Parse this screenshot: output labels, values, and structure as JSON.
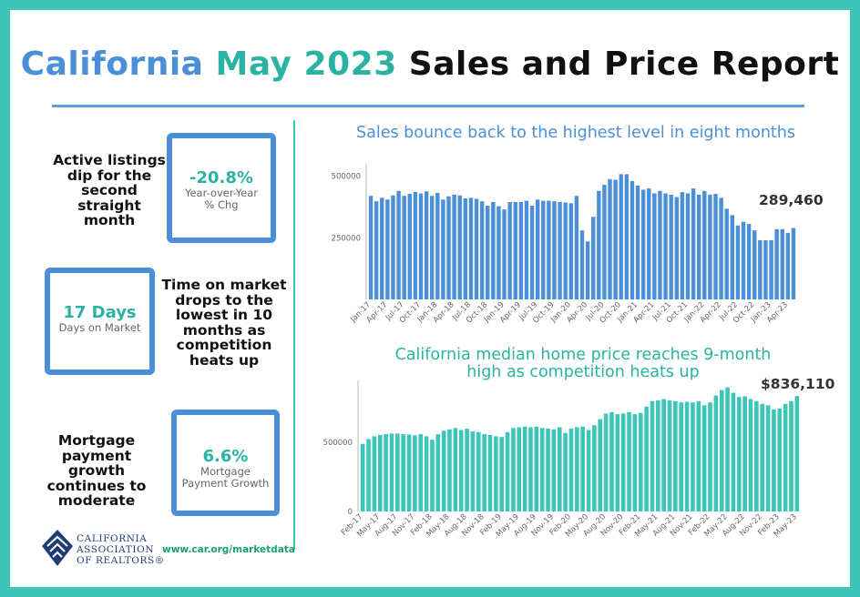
{
  "title": {
    "part1": "California",
    "part2": "May 2023",
    "part3": "Sales and Price Report"
  },
  "stats": [
    {
      "text_lines": [
        "Active listings",
        "dip for the",
        "second",
        "straight",
        "month"
      ],
      "value": "-20.8%",
      "label_lines": [
        "Year-over-Year",
        "% Chg"
      ]
    },
    {
      "text_lines": [
        "Time on market",
        "drops to the",
        "lowest in 10",
        "months as",
        "competition",
        "heats up"
      ],
      "value": "17 Days",
      "label_lines": [
        "Days on Market"
      ]
    },
    {
      "text_lines": [
        "Mortgage",
        "payment",
        "growth",
        "continues to",
        "moderate"
      ],
      "value": "6.6%",
      "label_lines": [
        "Mortgage",
        "Payment Growth"
      ]
    }
  ],
  "footer": {
    "url": "www.car.org/marketdata",
    "logo_lines": [
      "CALIFORNIA",
      "ASSOCIATION",
      "OF REALTORS®"
    ]
  },
  "colors": {
    "frame": "#3cc6b8",
    "blue": "#4a8fd8",
    "teal": "#2ab3a3"
  },
  "chart_data": [
    {
      "type": "bar",
      "title": "Sales bounce back to the highest level in eight months",
      "callout": "289,460",
      "ylim": [
        0,
        550000
      ],
      "yticks": [
        {
          "value": 250000,
          "label": "250000"
        },
        {
          "value": 500000,
          "label": "500000"
        }
      ],
      "categories": [
        "Jan-17",
        "Feb-17",
        "Mar-17",
        "Apr-17",
        "May-17",
        "Jun-17",
        "Jul-17",
        "Aug-17",
        "Sep-17",
        "Oct-17",
        "Nov-17",
        "Dec-17",
        "Jan-18",
        "Feb-18",
        "Mar-18",
        "Apr-18",
        "May-18",
        "Jun-18",
        "Jul-18",
        "Aug-18",
        "Sep-18",
        "Oct-18",
        "Nov-18",
        "Dec-18",
        "Jan-19",
        "Feb-19",
        "Mar-19",
        "Apr-19",
        "May-19",
        "Jun-19",
        "Jul-19",
        "Aug-19",
        "Sep-19",
        "Oct-19",
        "Nov-19",
        "Dec-19",
        "Jan-20",
        "Feb-20",
        "Mar-20",
        "Apr-20",
        "May-20",
        "Jun-20",
        "Jul-20",
        "Aug-20",
        "Sep-20",
        "Oct-20",
        "Nov-20",
        "Dec-20",
        "Jan-21",
        "Feb-21",
        "Mar-21",
        "Apr-21",
        "May-21",
        "Jun-21",
        "Jul-21",
        "Aug-21",
        "Sep-21",
        "Oct-21",
        "Nov-21",
        "Dec-21",
        "Jan-22",
        "Feb-22",
        "Mar-22",
        "Apr-22",
        "May-22",
        "Jun-22",
        "Jul-22",
        "Aug-22",
        "Sep-22",
        "Oct-22",
        "Nov-22",
        "Dec-22",
        "Jan-23",
        "Feb-23",
        "Mar-23",
        "Apr-23",
        "May-23"
      ],
      "tick_labels": [
        "Jan-17",
        "Apr-17",
        "Jul-17",
        "Oct-17",
        "Jan-18",
        "Apr-18",
        "Jul-18",
        "Oct-18",
        "Jan-19",
        "Apr-19",
        "Jul-19",
        "Oct-19",
        "Jan-20",
        "Apr-20",
        "Jul-20",
        "Oct-20",
        "Jan-21",
        "Apr-21",
        "Jul-21",
        "Oct-21",
        "Jan-22",
        "Apr-22",
        "Jul-22",
        "Oct-22",
        "Jan-23",
        "Apr-23"
      ],
      "values": [
        420000,
        398000,
        412000,
        405000,
        422000,
        440000,
        420000,
        428000,
        436000,
        430000,
        438000,
        420000,
        432000,
        405000,
        418000,
        425000,
        422000,
        410000,
        412000,
        408000,
        398000,
        380000,
        395000,
        378000,
        365000,
        395000,
        395000,
        395000,
        400000,
        380000,
        405000,
        400000,
        400000,
        398000,
        395000,
        393000,
        390000,
        420000,
        280000,
        235000,
        335000,
        440000,
        465000,
        488000,
        485000,
        508000,
        508000,
        480000,
        462000,
        445000,
        450000,
        430000,
        440000,
        430000,
        425000,
        415000,
        435000,
        430000,
        450000,
        425000,
        440000,
        425000,
        428000,
        412000,
        368000,
        342000,
        300000,
        315000,
        306000,
        280000,
        240000,
        240000,
        240000,
        285000,
        285000,
        270000,
        289460
      ]
    },
    {
      "type": "bar",
      "title": "California median home price reaches 9-month high as competition heats up",
      "title_lines": [
        "California median home price reaches 9-month",
        "high as competition heats up"
      ],
      "callout": "$836,110",
      "ylim": [
        0,
        950000
      ],
      "yticks": [
        {
          "value": 0,
          "label": "0"
        },
        {
          "value": 500000,
          "label": "500000"
        }
      ],
      "categories": [
        "Feb-17",
        "Mar-17",
        "Apr-17",
        "May-17",
        "Jun-17",
        "Jul-17",
        "Aug-17",
        "Sep-17",
        "Oct-17",
        "Nov-17",
        "Dec-17",
        "Jan-18",
        "Feb-18",
        "Mar-18",
        "Apr-18",
        "May-18",
        "Jun-18",
        "Jul-18",
        "Aug-18",
        "Sep-18",
        "Oct-18",
        "Nov-18",
        "Dec-18",
        "Jan-19",
        "Feb-19",
        "Mar-19",
        "Apr-19",
        "May-19",
        "Jun-19",
        "Jul-19",
        "Aug-19",
        "Sep-19",
        "Oct-19",
        "Nov-19",
        "Dec-19",
        "Jan-20",
        "Feb-20",
        "Mar-20",
        "Apr-20",
        "May-20",
        "Jun-20",
        "Jul-20",
        "Aug-20",
        "Sep-20",
        "Oct-20",
        "Nov-20",
        "Dec-20",
        "Jan-21",
        "Feb-21",
        "Mar-21",
        "Apr-21",
        "May-21",
        "Jun-21",
        "Jul-21",
        "Aug-21",
        "Sep-21",
        "Oct-21",
        "Nov-21",
        "Dec-21",
        "Jan-22",
        "Feb-22",
        "Mar-22",
        "Apr-22",
        "May-22",
        "Jun-22",
        "Jul-22",
        "Aug-22",
        "Sep-22",
        "Oct-22",
        "Nov-22",
        "Dec-22",
        "Jan-23",
        "Feb-23",
        "Mar-23",
        "Apr-23",
        "May-23"
      ],
      "tick_labels": [
        "Feb-17",
        "May-17",
        "Aug-17",
        "Nov-17",
        "Feb-18",
        "May-18",
        "Aug-18",
        "Nov-18",
        "Feb-19",
        "May-19",
        "Aug-19",
        "Nov-19",
        "Feb-20",
        "May-20",
        "Aug-20",
        "Nov-20",
        "Feb-21",
        "May-21",
        "Aug-21",
        "Nov-21",
        "Feb-22",
        "May-22",
        "Aug-22",
        "Nov-22",
        "Feb-23",
        "May-23"
      ],
      "values": [
        490000,
        525000,
        545000,
        555000,
        560000,
        565000,
        565000,
        560000,
        558000,
        552000,
        560000,
        545000,
        520000,
        560000,
        585000,
        595000,
        605000,
        590000,
        600000,
        580000,
        575000,
        560000,
        555000,
        545000,
        540000,
        575000,
        605000,
        610000,
        615000,
        610000,
        615000,
        605000,
        600000,
        595000,
        610000,
        570000,
        600000,
        610000,
        615000,
        590000,
        625000,
        670000,
        710000,
        720000,
        705000,
        710000,
        720000,
        705000,
        715000,
        760000,
        800000,
        805000,
        815000,
        805000,
        800000,
        790000,
        795000,
        790000,
        800000,
        770000,
        790000,
        840000,
        880000,
        900000,
        860000,
        830000,
        835000,
        815000,
        800000,
        780000,
        770000,
        740000,
        745000,
        780000,
        800000,
        836110
      ]
    }
  ]
}
